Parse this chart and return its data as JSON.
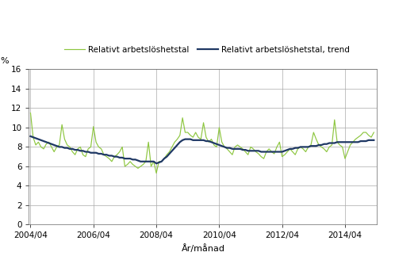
{
  "title": "",
  "ylabel": "%",
  "xlabel": "År/månad",
  "legend_line1": "Relativt arbetslöshetstal",
  "legend_line2": "Relativt arbetslöshetstal, trend",
  "line1_color": "#8dc63f",
  "line2_color": "#1f3864",
  "ylim": [
    0,
    16
  ],
  "yticks": [
    0,
    2,
    4,
    6,
    8,
    10,
    12,
    14,
    16
  ],
  "xtick_labels": [
    "2004/04",
    "2006/04",
    "2008/04",
    "2010/04",
    "2012/04",
    "2014/04"
  ],
  "background_color": "#ffffff",
  "grid_color": "#aaaaaa",
  "raw": [
    11.5,
    9.0,
    8.2,
    8.5,
    8.0,
    7.8,
    8.3,
    8.5,
    8.0,
    7.5,
    8.0,
    8.2,
    10.3,
    8.8,
    8.2,
    8.0,
    7.5,
    7.2,
    7.8,
    8.0,
    7.2,
    7.0,
    7.8,
    8.0,
    10.1,
    8.5,
    8.0,
    7.8,
    7.2,
    7.0,
    6.8,
    6.5,
    7.0,
    7.2,
    7.5,
    8.0,
    6.0,
    6.2,
    6.5,
    6.2,
    6.0,
    5.8,
    6.0,
    6.2,
    6.5,
    8.5,
    6.0,
    6.5,
    5.3,
    6.5,
    6.5,
    6.8,
    7.2,
    7.5,
    8.0,
    8.5,
    8.8,
    9.2,
    11.0,
    9.5,
    9.5,
    9.2,
    9.0,
    9.5,
    9.0,
    8.8,
    10.5,
    9.0,
    8.5,
    8.8,
    8.2,
    8.0,
    10.0,
    8.5,
    8.0,
    7.8,
    7.5,
    7.2,
    8.0,
    8.2,
    8.0,
    7.8,
    7.5,
    7.2,
    8.0,
    7.8,
    7.5,
    7.3,
    7.0,
    6.8,
    7.5,
    7.8,
    7.5,
    7.3,
    8.0,
    8.5,
    7.0,
    7.2,
    7.5,
    7.8,
    7.5,
    7.2,
    7.8,
    8.0,
    7.8,
    7.5,
    8.0,
    8.2,
    9.5,
    8.8,
    8.2,
    8.0,
    7.8,
    7.5,
    8.0,
    8.2,
    10.8,
    8.5,
    8.2,
    8.0,
    6.8,
    7.5,
    8.2,
    8.5,
    8.8,
    9.0,
    9.2,
    9.5,
    9.5,
    9.2,
    9.0,
    9.5
  ],
  "trend": [
    9.1,
    9.0,
    8.9,
    8.8,
    8.7,
    8.6,
    8.5,
    8.4,
    8.3,
    8.2,
    8.1,
    8.0,
    8.0,
    7.9,
    7.9,
    7.8,
    7.8,
    7.7,
    7.7,
    7.6,
    7.6,
    7.5,
    7.5,
    7.4,
    7.4,
    7.4,
    7.3,
    7.3,
    7.2,
    7.2,
    7.1,
    7.1,
    7.0,
    7.0,
    6.9,
    6.9,
    6.8,
    6.8,
    6.8,
    6.7,
    6.7,
    6.6,
    6.5,
    6.5,
    6.5,
    6.5,
    6.5,
    6.5,
    6.3,
    6.4,
    6.5,
    6.8,
    7.0,
    7.3,
    7.6,
    7.9,
    8.2,
    8.5,
    8.7,
    8.8,
    8.8,
    8.8,
    8.7,
    8.7,
    8.7,
    8.7,
    8.7,
    8.6,
    8.6,
    8.5,
    8.4,
    8.3,
    8.2,
    8.1,
    8.0,
    7.9,
    7.9,
    7.8,
    7.8,
    7.8,
    7.8,
    7.7,
    7.7,
    7.6,
    7.6,
    7.6,
    7.6,
    7.6,
    7.5,
    7.5,
    7.5,
    7.5,
    7.5,
    7.5,
    7.5,
    7.5,
    7.5,
    7.6,
    7.7,
    7.8,
    7.8,
    7.9,
    7.9,
    8.0,
    8.0,
    8.0,
    8.0,
    8.1,
    8.1,
    8.1,
    8.2,
    8.2,
    8.3,
    8.3,
    8.4,
    8.4,
    8.4,
    8.5,
    8.5,
    8.5,
    8.5,
    8.5,
    8.5,
    8.5,
    8.5,
    8.5,
    8.6,
    8.6,
    8.6,
    8.7,
    8.7,
    8.7
  ]
}
